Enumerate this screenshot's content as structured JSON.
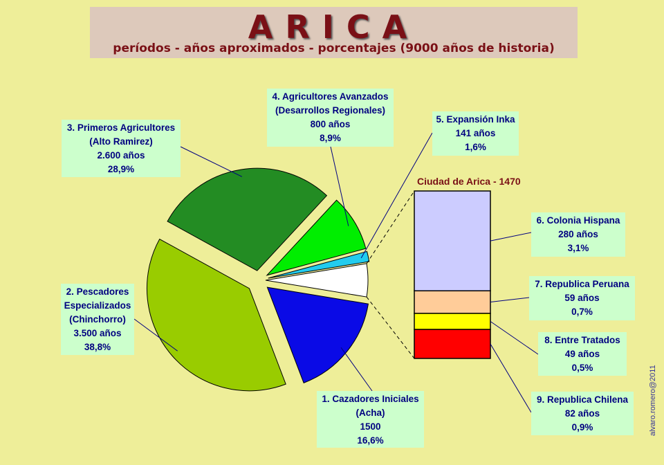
{
  "header": {
    "title": "ARICA",
    "subtitle": "períodos - años aproximados - porcentajes (9000 años de historia)"
  },
  "signature": "alvaro.romero@2011",
  "colors": {
    "background": "#eeee99",
    "label_box": "#ccffcc",
    "label_text": "#000080",
    "title": "#7a1016"
  },
  "chart_data": {
    "type": "bar-of-pie",
    "title": "ARICA",
    "subtitle": "períodos - años aproximados - porcentajes (9000 años de historia)",
    "pie": [
      {
        "name": "1. Cazadores Iniciales",
        "sub": "(Acha)",
        "years": "1500",
        "pct": "16,6%",
        "value": 16.6,
        "color": "#0a0ae6"
      },
      {
        "name": "2. Pescadores Especializados",
        "sub": "(Chinchorro)",
        "years": "3.500 años",
        "pct": "38,8%",
        "value": 38.8,
        "color": "#99cc00"
      },
      {
        "name": "3. Primeros Agricultores",
        "sub": "(Alto Ramirez)",
        "years": "2.600 años",
        "pct": "28,9%",
        "value": 28.9,
        "color": "#238c23"
      },
      {
        "name": "4. Agricultores Avanzados",
        "sub": "(Desarrollos Regionales)",
        "years": "800 años",
        "pct": "8,9%",
        "value": 8.9,
        "color": "#00ee00"
      },
      {
        "name": "5. Expansión Inka",
        "sub": "",
        "years": "141 años",
        "pct": "1,6%",
        "value": 1.6,
        "color": "#22ccee"
      },
      {
        "name": "Ciudad de Arica - 1470",
        "sub": "",
        "years": "",
        "pct": "",
        "value": 5.2,
        "color": "#ffffff"
      }
    ],
    "bar_title": "Ciudad de Arica - 1470",
    "bar": [
      {
        "name": "6. Colonia Hispana",
        "years": "280 años",
        "pct": "3,1%",
        "value": 3.1,
        "color": "#ccccff"
      },
      {
        "name": "7. Republica Peruana",
        "years": "59 años",
        "pct": "0,7%",
        "value": 0.7,
        "color": "#ffcc99"
      },
      {
        "name": "8. Entre Tratados",
        "years": "49 años",
        "pct": "0,5%",
        "value": 0.5,
        "color": "#ffff00"
      },
      {
        "name": "9. Republica Chilena",
        "years": "82 años",
        "pct": "0,9%",
        "value": 0.9,
        "color": "#ff0000"
      }
    ]
  }
}
